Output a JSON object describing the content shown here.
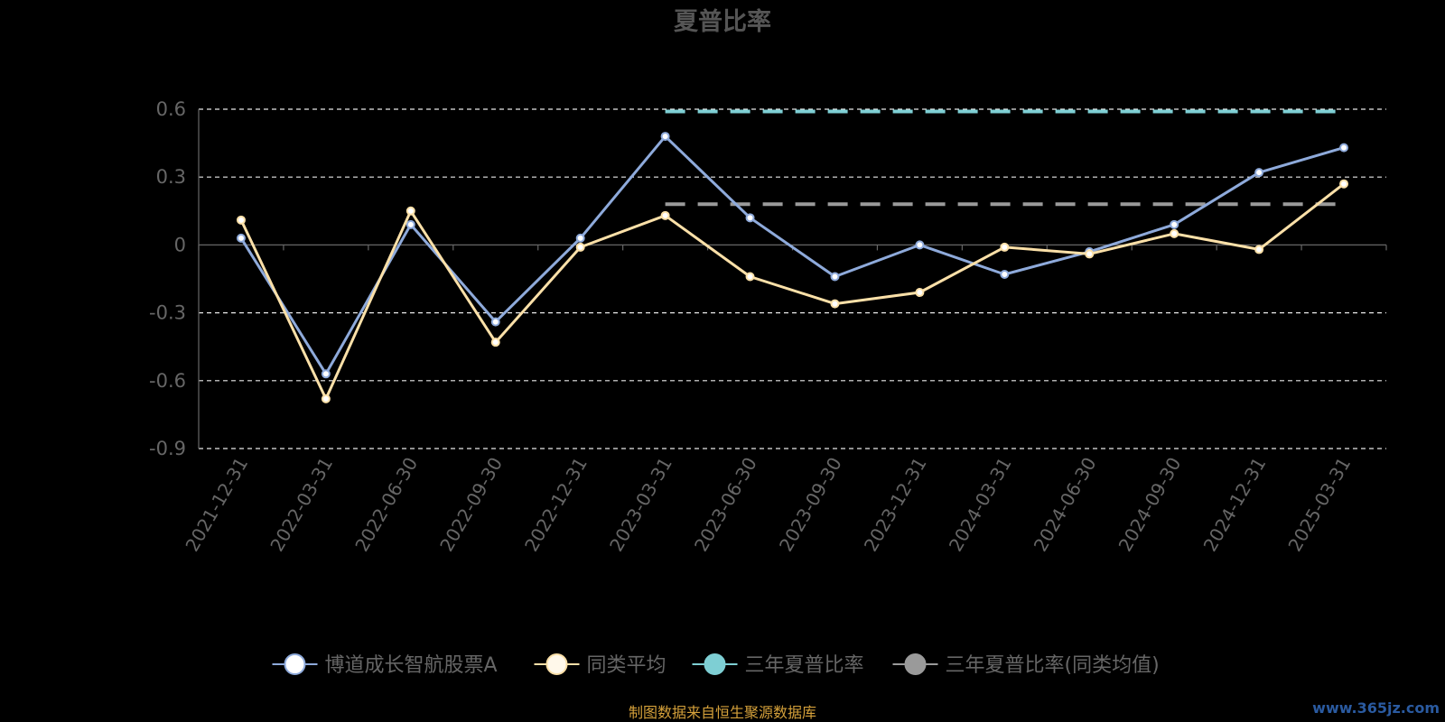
{
  "chart_data": {
    "type": "line",
    "title": "夏普比率",
    "categories": [
      "2021-12-31",
      "2022-03-31",
      "2022-06-30",
      "2022-09-30",
      "2022-12-31",
      "2023-03-31",
      "2023-06-30",
      "2023-09-30",
      "2023-12-31",
      "2024-03-31",
      "2024-06-30",
      "2024-09-30",
      "2024-12-31",
      "2025-03-31"
    ],
    "ylim": [
      -0.9,
      0.6
    ],
    "yticks": [
      "0.6",
      "0.3",
      "0",
      "-0.3",
      "-0.6",
      "-0.9"
    ],
    "ytick_values": [
      0.6,
      0.3,
      0,
      -0.3,
      -0.6,
      -0.9
    ],
    "grid": true,
    "legend_position": "bottom",
    "series": [
      {
        "name": "博道成长智航股票A",
        "color": "#8eaadb",
        "values": [
          0.03,
          -0.57,
          0.09,
          -0.34,
          0.03,
          0.48,
          0.12,
          -0.14,
          0.0,
          -0.13,
          -0.03,
          0.09,
          0.32,
          0.43
        ]
      },
      {
        "name": "同类平均",
        "color": "#fbe0a8",
        "values": [
          0.11,
          -0.68,
          0.15,
          -0.43,
          -0.01,
          0.13,
          -0.14,
          -0.26,
          -0.21,
          -0.01,
          -0.04,
          0.05,
          -0.02,
          0.27
        ]
      },
      {
        "name": "三年夏普比率",
        "color": "#7ecfd4",
        "values": [
          null,
          null,
          null,
          null,
          null,
          0.59,
          0.59,
          0.59,
          0.59,
          0.59,
          0.59,
          0.59,
          0.59,
          0.59
        ]
      },
      {
        "name": "三年夏普比率(同类均值)",
        "color": "#9a9a9a",
        "values": [
          null,
          null,
          null,
          null,
          null,
          0.18,
          0.18,
          0.18,
          0.18,
          0.18,
          0.18,
          0.18,
          0.18,
          0.18
        ]
      }
    ]
  },
  "footer": {
    "source": "制图数据来自恒生聚源数据库",
    "watermark": "www.365jz.com"
  }
}
